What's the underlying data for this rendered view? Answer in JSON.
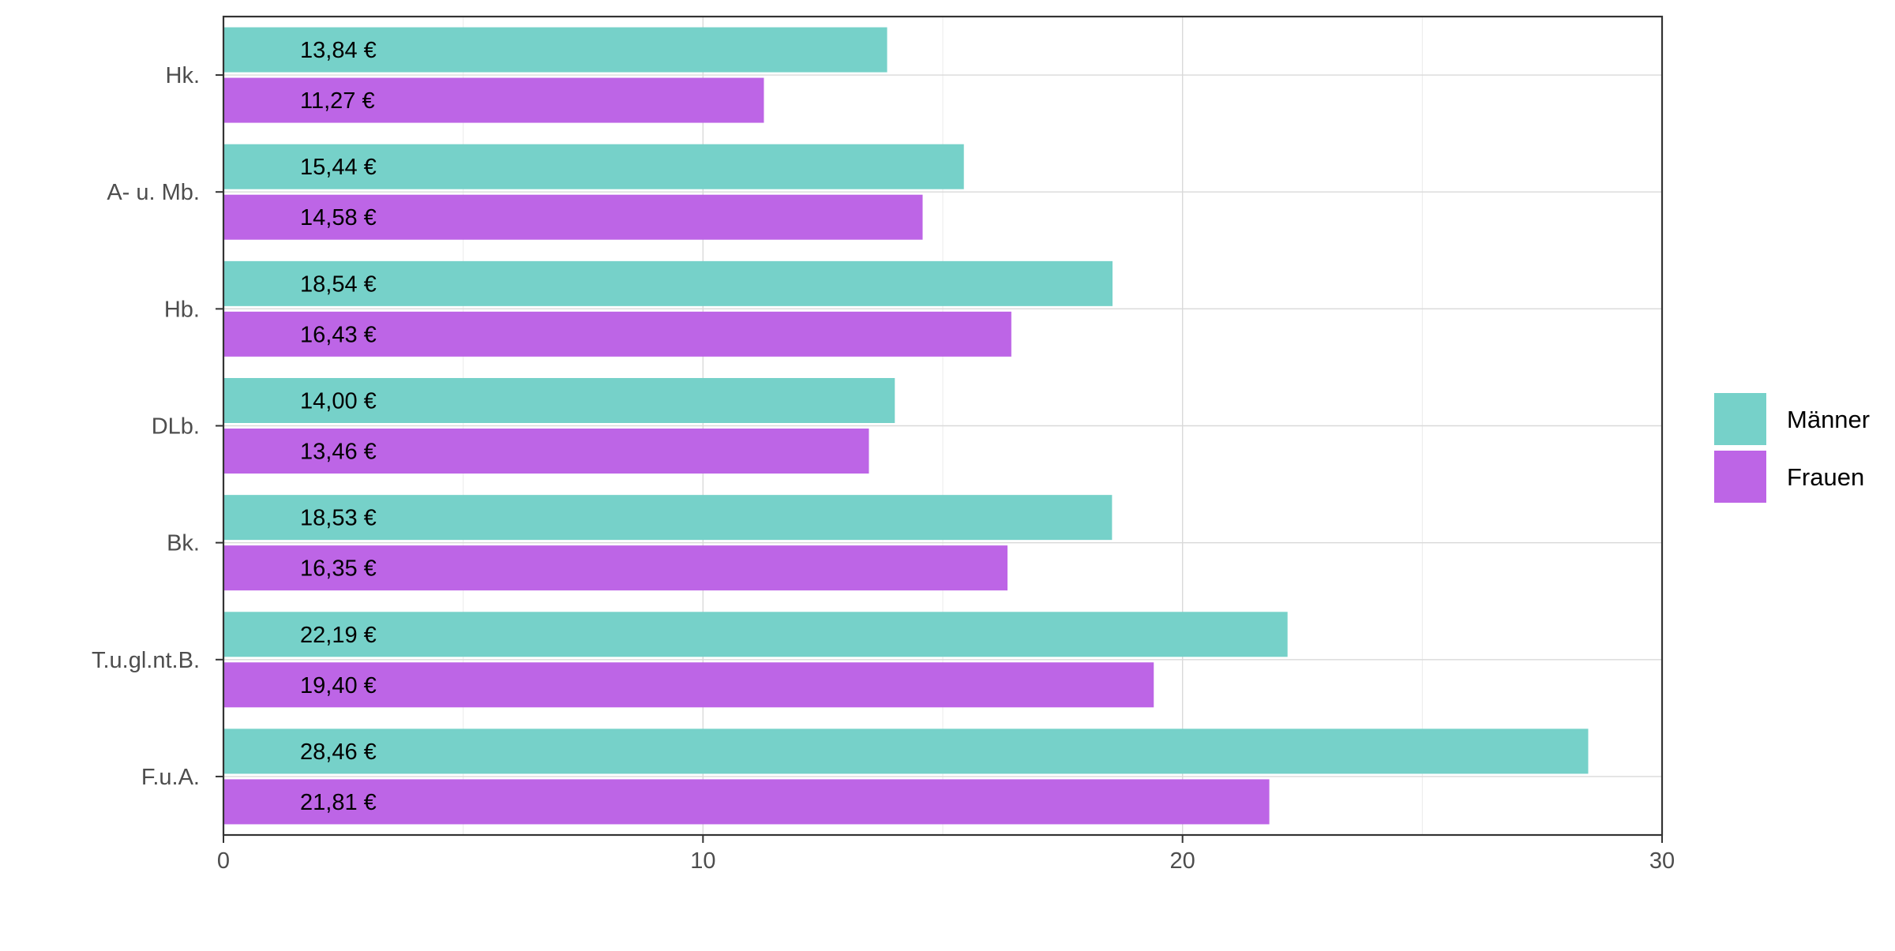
{
  "chart_data": {
    "type": "bar",
    "orientation": "horizontal",
    "categories": [
      "Hk.",
      "A- u. Mb.",
      "Hb.",
      "DLb.",
      "Bk.",
      "T.u.gl.nt.B.",
      "F.u.A."
    ],
    "series": [
      {
        "name": "Männer",
        "color": "#76d1c9",
        "values": [
          13.84,
          15.44,
          18.54,
          14.0,
          18.53,
          22.19,
          28.46
        ],
        "labels": [
          "13,84 €",
          "15,44 €",
          "18,54 €",
          "14,00 €",
          "18,53 €",
          "22,19 €",
          "28,46 €"
        ]
      },
      {
        "name": "Frauen",
        "color": "#bd65e6",
        "values": [
          11.27,
          14.58,
          16.43,
          13.46,
          16.35,
          19.4,
          21.81
        ],
        "labels": [
          "11,27 €",
          "14,58 €",
          "16,43 €",
          "13,46 €",
          "16,35 €",
          "19,40 €",
          "21,81 €"
        ]
      }
    ],
    "xlim": [
      0,
      30
    ],
    "x_ticks": [
      0,
      10,
      20,
      30
    ],
    "x_tick_labels": [
      "0",
      "10",
      "20",
      "30"
    ],
    "x_minor_ticks": [
      5,
      15,
      25
    ],
    "grid": true,
    "legend_position": "right",
    "title": "",
    "xlabel": "",
    "ylabel": ""
  }
}
